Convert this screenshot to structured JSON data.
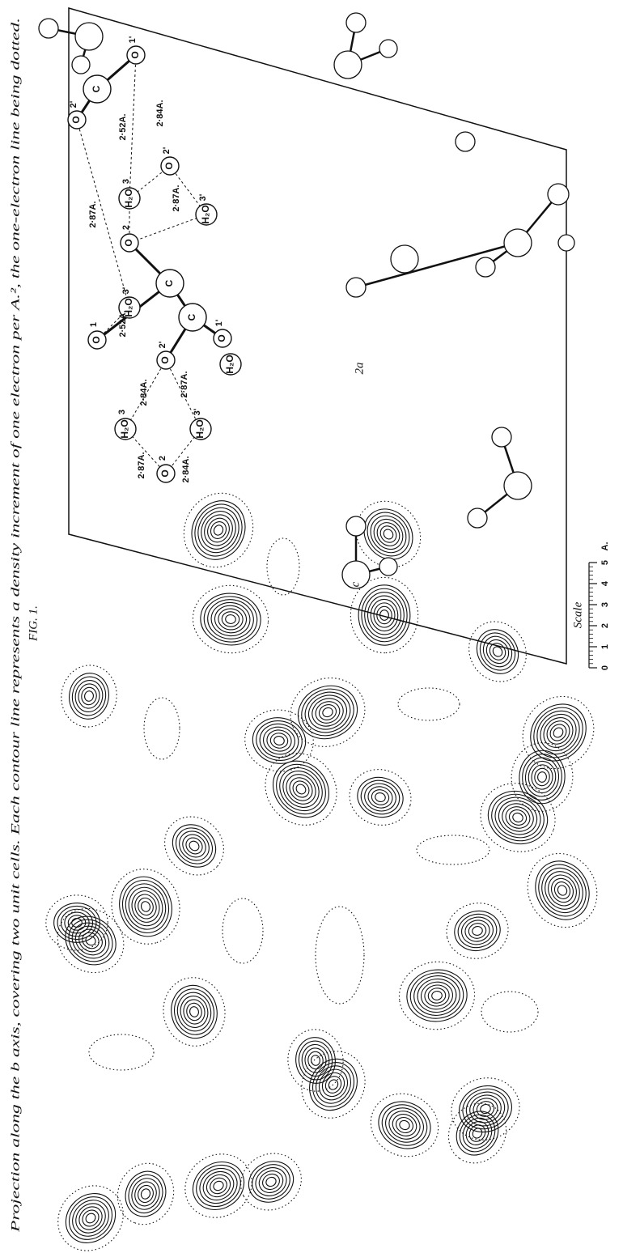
{
  "figure": {
    "label": "FIG. 1.",
    "caption": "Projection along the b axis, covering two unit cells.   Each contour line represents a density increment of one electron per A.², the one-electron line being dotted.",
    "scale": {
      "title": "Scale",
      "ticks": [
        "0",
        "1",
        "2",
        "3",
        "4",
        "5"
      ],
      "unit": "A."
    },
    "axes": {
      "a": "2a",
      "c": "c"
    },
    "atoms": [
      {
        "symbol": "C"
      },
      {
        "symbol": "O",
        "index": "1'"
      },
      {
        "symbol": "O",
        "index": "2'"
      },
      {
        "symbol": "H₂O",
        "index": "3"
      },
      {
        "symbol": "O",
        "index": "2'"
      },
      {
        "symbol": "H₂O",
        "index": "3'"
      },
      {
        "symbol": "O",
        "index": "2"
      },
      {
        "symbol": "C"
      },
      {
        "symbol": "C"
      },
      {
        "symbol": "O",
        "index": "1'"
      },
      {
        "symbol": "O",
        "index": "1"
      },
      {
        "symbol": "H₂O",
        "index": "3'"
      },
      {
        "symbol": "O",
        "index": "2'"
      },
      {
        "symbol": "H₂O"
      },
      {
        "symbol": "H₂O",
        "index": "3"
      },
      {
        "symbol": "H₂O",
        "index": "3'"
      },
      {
        "symbol": "O",
        "index": "2"
      }
    ],
    "distances": [
      "2·52A.",
      "2·84A.",
      "2·87A.",
      "2·87A.",
      "2·52A.",
      "2·84A.",
      "2·87A.",
      "2·87A.",
      "2·84A."
    ]
  }
}
